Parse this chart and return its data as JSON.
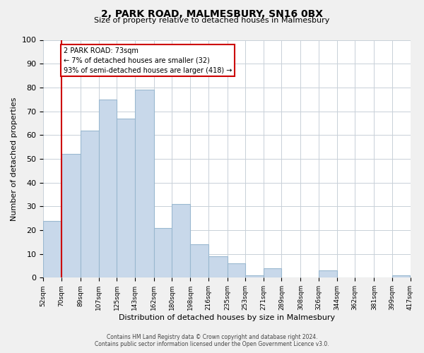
{
  "title": "2, PARK ROAD, MALMESBURY, SN16 0BX",
  "subtitle": "Size of property relative to detached houses in Malmesbury",
  "xlabel": "Distribution of detached houses by size in Malmesbury",
  "ylabel": "Number of detached properties",
  "bar_color": "#c8d8ea",
  "bar_edge_color": "#9ab8d0",
  "vline_x": 70,
  "vline_color": "#cc0000",
  "annotation_title": "2 PARK ROAD: 73sqm",
  "annotation_line1": "← 7% of detached houses are smaller (32)",
  "annotation_line2": "93% of semi-detached houses are larger (418) →",
  "annotation_box_color": "#ffffff",
  "annotation_box_edge": "#cc0000",
  "bin_edges": [
    52,
    70,
    89,
    107,
    125,
    143,
    162,
    180,
    198,
    216,
    235,
    253,
    271,
    289,
    308,
    326,
    344,
    362,
    381,
    399,
    417
  ],
  "bar_heights": [
    24,
    52,
    62,
    75,
    67,
    79,
    21,
    31,
    14,
    9,
    6,
    1,
    4,
    0,
    0,
    3,
    0,
    0,
    0,
    1
  ],
  "ylim": [
    0,
    100
  ],
  "yticks": [
    0,
    10,
    20,
    30,
    40,
    50,
    60,
    70,
    80,
    90,
    100
  ],
  "footer_line1": "Contains HM Land Registry data © Crown copyright and database right 2024.",
  "footer_line2": "Contains public sector information licensed under the Open Government Licence v3.0.",
  "background_color": "#f0f0f0",
  "plot_background_color": "#ffffff",
  "grid_color": "#c8d0d8"
}
